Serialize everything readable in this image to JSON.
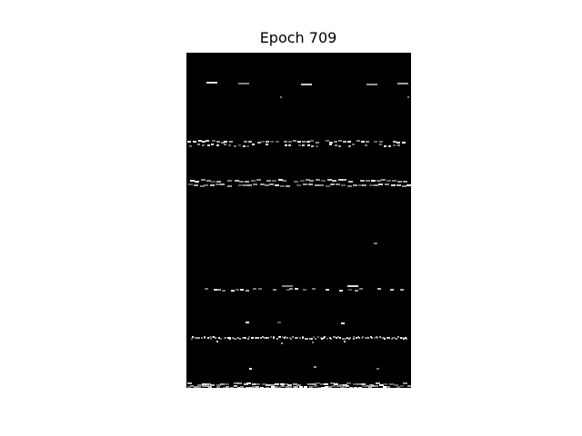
{
  "title": "Epoch 709",
  "colors": {
    "background": "#ffffff",
    "image_background": "#000000",
    "pixel_bright": "#ffffff",
    "pixel_dim": "#9a9a9a"
  }
}
